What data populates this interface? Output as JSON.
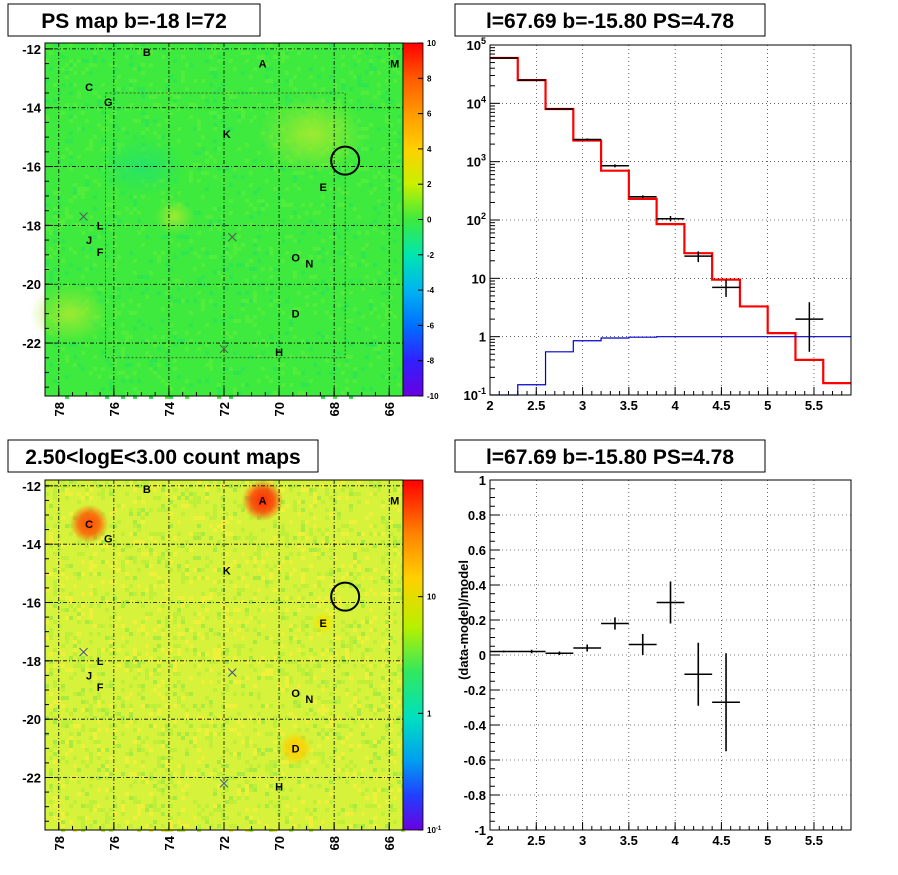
{
  "chart_data": [
    {
      "type": "heatmap",
      "title": "PS map b=-18 l=72",
      "xlim": [
        78.5,
        65.5
      ],
      "ylim": [
        -23.8,
        -11.8
      ],
      "x_ticks": [
        "78",
        "76",
        "74",
        "72",
        "70",
        "68",
        "66"
      ],
      "x_tick_values": [
        78,
        76,
        74,
        72,
        70,
        68,
        66
      ],
      "y_ticks": [
        "-12",
        "-14",
        "-16",
        "-18",
        "-20",
        "-22"
      ],
      "y_tick_values": [
        -12,
        -14,
        -16,
        -18,
        -20,
        -22
      ],
      "colorbar": {
        "scale": "linear",
        "range": [
          -10,
          10
        ],
        "labels": [
          "10",
          "8",
          "6",
          "4",
          "2",
          "0",
          "-2",
          "-4",
          "-6",
          "-8",
          "-10"
        ],
        "label_values": [
          10,
          8,
          6,
          4,
          2,
          0,
          -2,
          -4,
          -6,
          -8,
          -10
        ]
      },
      "grid": true,
      "background_color": "#3dea3d",
      "source_labels": [
        {
          "label": "A",
          "l": 70.6,
          "b": -12.5
        },
        {
          "label": "B",
          "l": 74.8,
          "b": -12.1
        },
        {
          "label": "C",
          "l": 76.9,
          "b": -13.3
        },
        {
          "label": "D",
          "l": 69.4,
          "b": -21.0
        },
        {
          "label": "E",
          "l": 68.4,
          "b": -16.7
        },
        {
          "label": "F",
          "l": 76.5,
          "b": -18.9
        },
        {
          "label": "G",
          "l": 76.2,
          "b": -13.8
        },
        {
          "label": "H",
          "l": 70.0,
          "b": -22.3
        },
        {
          "label": "J",
          "l": 76.9,
          "b": -18.5
        },
        {
          "label": "K",
          "l": 71.9,
          "b": -14.9
        },
        {
          "label": "L",
          "l": 76.5,
          "b": -18.0
        },
        {
          "label": "M",
          "l": 65.8,
          "b": -12.5
        },
        {
          "label": "N",
          "l": 68.9,
          "b": -19.3
        },
        {
          "label": "O",
          "l": 69.4,
          "b": -19.1
        }
      ],
      "crosses": [
        {
          "l": 77.1,
          "b": -17.7
        },
        {
          "l": 71.7,
          "b": -18.4
        },
        {
          "l": 72.0,
          "b": -22.2
        }
      ],
      "circle": {
        "l": 67.6,
        "b": -15.8
      }
    },
    {
      "type": "line",
      "title": "l=67.69 b=-15.80 PS=4.78",
      "xlim": [
        2.0,
        5.9
      ],
      "ylim": [
        0.1,
        100000
      ],
      "y_scale": "log",
      "grid": true,
      "x_ticks": [
        "2",
        "2.5",
        "3",
        "3.5",
        "4",
        "4.5",
        "5",
        "5.5"
      ],
      "x_tick_values": [
        2,
        2.5,
        3,
        3.5,
        4,
        4.5,
        5,
        5.5
      ],
      "y_ticks": [
        "10^5",
        "10^4",
        "10^3",
        "10^2",
        "10",
        "1",
        "10^-1"
      ],
      "y_tick_values": [
        100000,
        10000,
        1000,
        100,
        10,
        1,
        0.1
      ],
      "bin_edges": [
        2.0,
        2.3,
        2.6,
        2.9,
        3.2,
        3.5,
        3.8,
        4.1,
        4.4,
        4.7,
        5.0,
        5.3,
        5.6,
        5.9
      ],
      "series": [
        {
          "color": "#ff0000",
          "style": "step",
          "values": [
            60000,
            25000,
            8000,
            2300,
            700,
            230,
            85,
            27,
            9.5,
            3.3,
            1.15,
            0.4,
            0.16
          ]
        },
        {
          "color": "#0000cc",
          "style": "step",
          "values": [
            0.1,
            0.15,
            0.55,
            0.85,
            0.95,
            0.98,
            1.0,
            1.0,
            1.0,
            1.0,
            1.0,
            1.0,
            1.0
          ]
        },
        {
          "color": "#000000",
          "style": "errorbar",
          "points": [
            {
              "x": 2.15,
              "y": 60000,
              "xerr": 0.15,
              "ylo": 59000,
              "yhi": 61000
            },
            {
              "x": 2.45,
              "y": 25000,
              "xerr": 0.15,
              "ylo": 24500,
              "yhi": 25500
            },
            {
              "x": 2.75,
              "y": 8000,
              "xerr": 0.15,
              "ylo": 7800,
              "yhi": 8200
            },
            {
              "x": 3.05,
              "y": 2400,
              "xerr": 0.15,
              "ylo": 2300,
              "yhi": 2500
            },
            {
              "x": 3.35,
              "y": 850,
              "xerr": 0.15,
              "ylo": 800,
              "yhi": 900
            },
            {
              "x": 3.65,
              "y": 250,
              "xerr": 0.15,
              "ylo": 235,
              "yhi": 265
            },
            {
              "x": 3.95,
              "y": 105,
              "xerr": 0.15,
              "ylo": 95,
              "yhi": 117
            },
            {
              "x": 4.25,
              "y": 24,
              "xerr": 0.15,
              "ylo": 19,
              "yhi": 29
            },
            {
              "x": 4.55,
              "y": 7,
              "xerr": 0.15,
              "ylo": 4.8,
              "yhi": 9.5
            },
            {
              "x": 5.45,
              "y": 2,
              "xerr": 0.15,
              "ylo": 0.55,
              "yhi": 3.9
            }
          ]
        }
      ]
    },
    {
      "type": "heatmap",
      "title": "2.50<logE<3.00 count maps",
      "xlim": [
        78.5,
        65.5
      ],
      "ylim": [
        -23.8,
        -11.8
      ],
      "x_ticks": [
        "78",
        "76",
        "74",
        "72",
        "70",
        "68",
        "66"
      ],
      "x_tick_values": [
        78,
        76,
        74,
        72,
        70,
        68,
        66
      ],
      "y_ticks": [
        "-12",
        "-14",
        "-16",
        "-18",
        "-20",
        "-22"
      ],
      "y_tick_values": [
        -12,
        -14,
        -16,
        -18,
        -20,
        -22
      ],
      "colorbar": {
        "scale": "log",
        "range": [
          0.1,
          100
        ],
        "labels": [
          "10",
          "1",
          "10^-1"
        ],
        "label_values": [
          10,
          1,
          0.1
        ]
      },
      "grid": true,
      "background_color": "#d6f23a",
      "hotspots": [
        {
          "label": "A",
          "l": 70.6,
          "b": -12.5,
          "color": "#ff2a00",
          "radius_deg": 0.75
        },
        {
          "label": "C",
          "l": 76.9,
          "b": -13.3,
          "color": "#ff4d00",
          "radius_deg": 0.7
        },
        {
          "label": "D",
          "l": 69.4,
          "b": -21.0,
          "color": "#ffd000",
          "radius_deg": 0.6
        },
        {
          "label": "E",
          "l": 68.4,
          "b": -16.7,
          "color": "#f6e600",
          "radius_deg": 0.4
        }
      ],
      "source_labels": [
        {
          "label": "A",
          "l": 70.6,
          "b": -12.5
        },
        {
          "label": "B",
          "l": 74.8,
          "b": -12.1
        },
        {
          "label": "C",
          "l": 76.9,
          "b": -13.3
        },
        {
          "label": "D",
          "l": 69.4,
          "b": -21.0
        },
        {
          "label": "E",
          "l": 68.4,
          "b": -16.7
        },
        {
          "label": "F",
          "l": 76.5,
          "b": -18.9
        },
        {
          "label": "G",
          "l": 76.2,
          "b": -13.8
        },
        {
          "label": "H",
          "l": 70.0,
          "b": -22.3
        },
        {
          "label": "J",
          "l": 76.9,
          "b": -18.5
        },
        {
          "label": "K",
          "l": 71.9,
          "b": -14.9
        },
        {
          "label": "L",
          "l": 76.5,
          "b": -18.0
        },
        {
          "label": "M",
          "l": 65.8,
          "b": -12.5
        },
        {
          "label": "N",
          "l": 68.9,
          "b": -19.3
        },
        {
          "label": "O",
          "l": 69.4,
          "b": -19.1
        }
      ],
      "crosses": [
        {
          "l": 77.1,
          "b": -17.7
        },
        {
          "l": 71.7,
          "b": -18.4
        },
        {
          "l": 72.0,
          "b": -22.2
        }
      ],
      "circle": {
        "l": 67.6,
        "b": -15.8
      }
    },
    {
      "type": "scatter",
      "title": "l=67.69 b=-15.80 PS=4.78",
      "ylabel": "(data-model)/model",
      "xlim": [
        2.0,
        5.9
      ],
      "ylim": [
        -1.0,
        1.0
      ],
      "grid": true,
      "x_ticks": [
        "2",
        "2.5",
        "3",
        "3.5",
        "4",
        "4.5",
        "5",
        "5.5"
      ],
      "x_tick_values": [
        2,
        2.5,
        3,
        3.5,
        4,
        4.5,
        5,
        5.5
      ],
      "y_ticks": [
        "1",
        "0.8",
        "0.6",
        "0.4",
        "0.2",
        "0",
        "-0.2",
        "-0.4",
        "-0.6",
        "-0.8",
        "-1"
      ],
      "y_tick_values": [
        1,
        0.8,
        0.6,
        0.4,
        0.2,
        0,
        -0.2,
        -0.4,
        -0.6,
        -0.8,
        -1
      ],
      "points": [
        {
          "x": 2.15,
          "y": 0.02,
          "xerr": 0.15,
          "yerr": 0.005
        },
        {
          "x": 2.45,
          "y": 0.02,
          "xerr": 0.15,
          "yerr": 0.01
        },
        {
          "x": 2.75,
          "y": 0.01,
          "xerr": 0.15,
          "yerr": 0.01
        },
        {
          "x": 3.05,
          "y": 0.04,
          "xerr": 0.15,
          "yerr": 0.02
        },
        {
          "x": 3.35,
          "y": 0.18,
          "xerr": 0.15,
          "yerr": 0.035
        },
        {
          "x": 3.65,
          "y": 0.06,
          "xerr": 0.15,
          "yerr": 0.06
        },
        {
          "x": 3.95,
          "y": 0.3,
          "xerr": 0.15,
          "yerr": 0.12
        },
        {
          "x": 4.25,
          "y": -0.11,
          "xerr": 0.15,
          "yerr": 0.18
        },
        {
          "x": 4.55,
          "y": -0.27,
          "xerr": 0.15,
          "yerr": 0.28
        }
      ]
    }
  ]
}
